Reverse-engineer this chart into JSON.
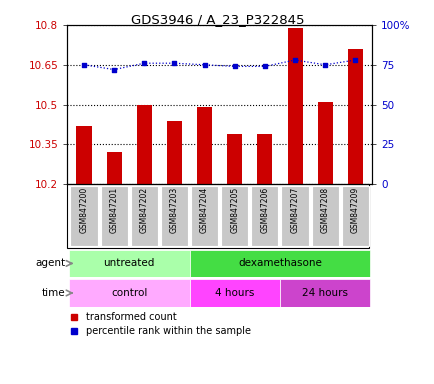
{
  "title": "GDS3946 / A_23_P322845",
  "samples": [
    "GSM847200",
    "GSM847201",
    "GSM847202",
    "GSM847203",
    "GSM847204",
    "GSM847205",
    "GSM847206",
    "GSM847207",
    "GSM847208",
    "GSM847209"
  ],
  "red_values": [
    10.42,
    10.32,
    10.5,
    10.44,
    10.49,
    10.39,
    10.39,
    10.79,
    10.51,
    10.71
  ],
  "blue_values": [
    75,
    72,
    76,
    76,
    75,
    74,
    74,
    78,
    75,
    78
  ],
  "ylim_left": [
    10.2,
    10.8
  ],
  "ylim_right": [
    0,
    100
  ],
  "yticks_left": [
    10.2,
    10.35,
    10.5,
    10.65,
    10.8
  ],
  "yticks_right": [
    0,
    25,
    50,
    75,
    100
  ],
  "ytick_labels_left": [
    "10.2",
    "10.35",
    "10.5",
    "10.65",
    "10.8"
  ],
  "ytick_labels_right": [
    "0",
    "25",
    "50",
    "75",
    "100%"
  ],
  "red_color": "#cc0000",
  "blue_color": "#0000cc",
  "bar_width": 0.5,
  "untreated_color": "#aaffaa",
  "dexamethasone_color": "#44dd44",
  "control_color": "#ffaaff",
  "fourhours_color": "#ff44ff",
  "twentyfourhours_color": "#cc44cc",
  "legend_red": "transformed count",
  "legend_blue": "percentile rank within the sample",
  "bg_color": "#ffffff",
  "xticklabel_bg": "#c8c8c8",
  "xticklabel_border": "#aaaaaa"
}
